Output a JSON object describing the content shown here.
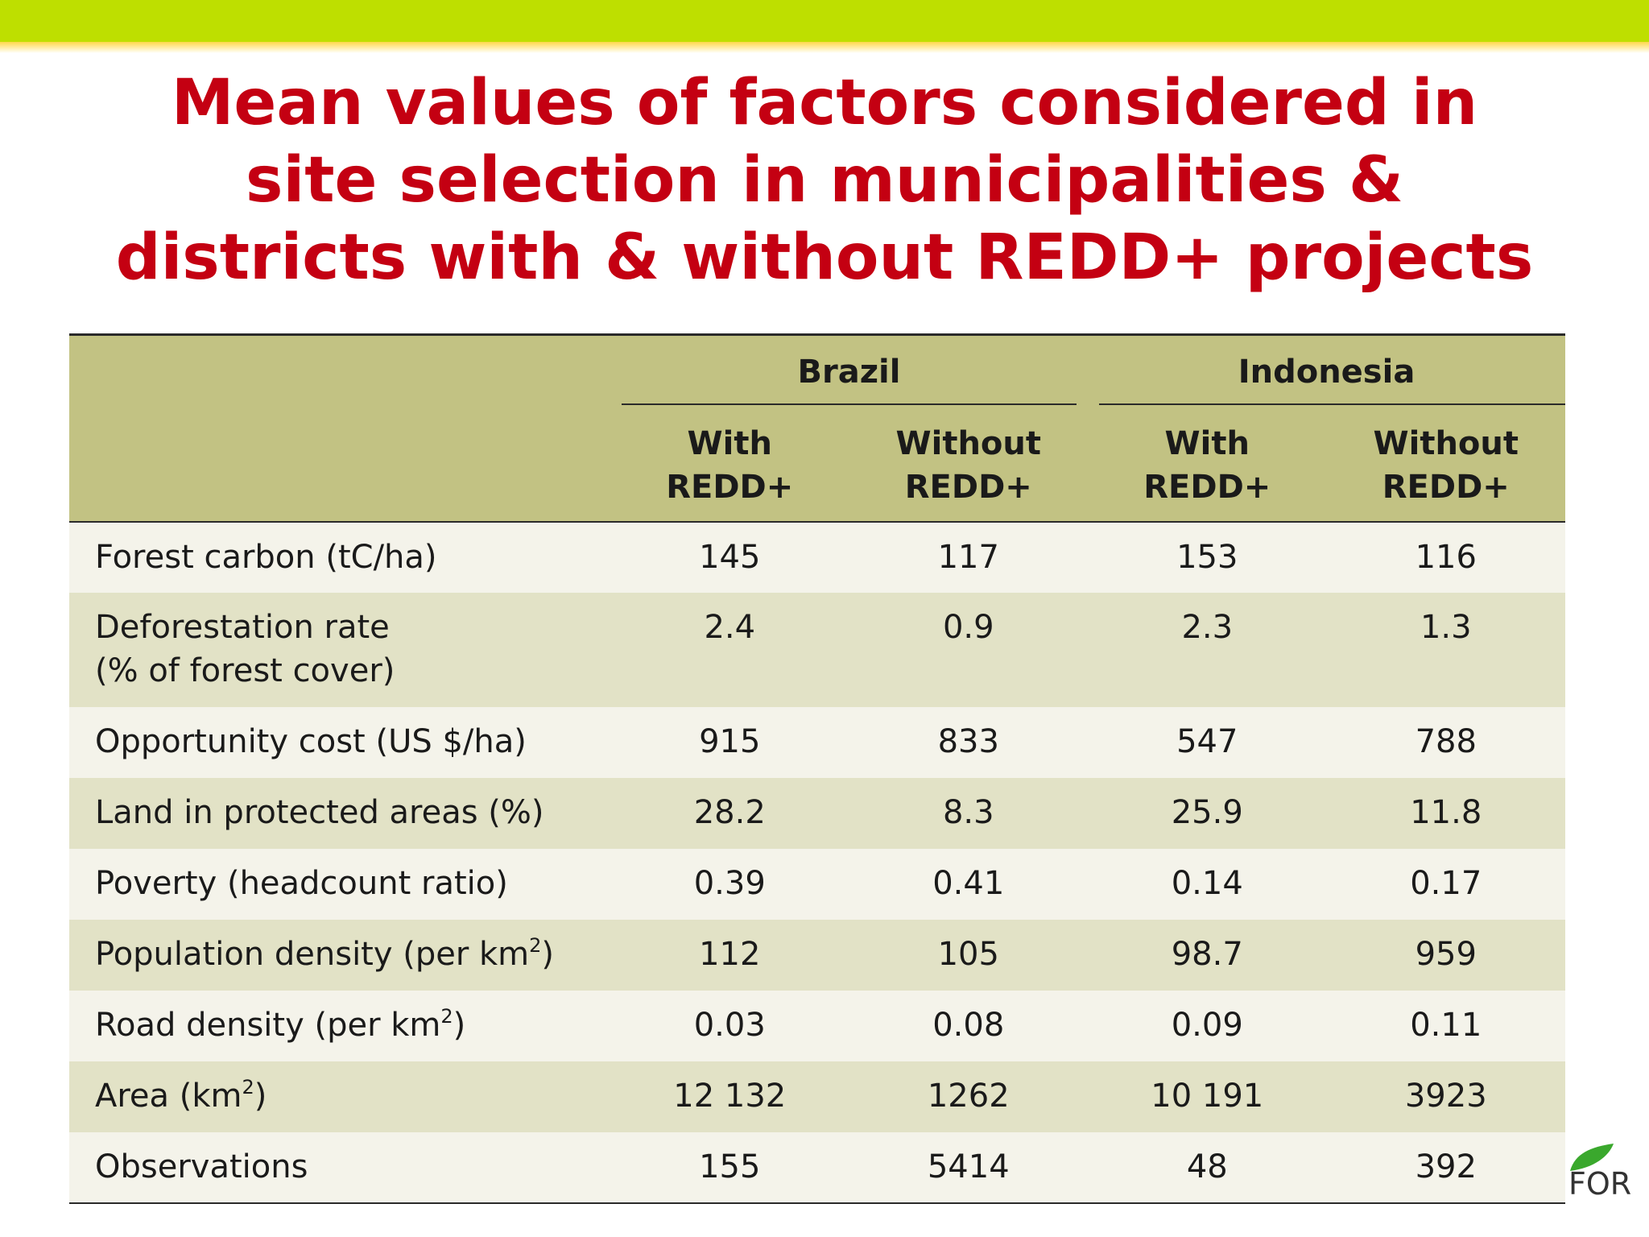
{
  "title_lines": [
    "Mean values of factors considered in",
    "site selection in municipalities &",
    "districts with & without REDD+ projects"
  ],
  "table": {
    "countries": [
      "Brazil",
      "Indonesia"
    ],
    "sub_headers": [
      {
        "line1": "With",
        "line2": "REDD+"
      },
      {
        "line1": "Without",
        "line2": "REDD+"
      },
      {
        "line1": "With",
        "line2": "REDD+"
      },
      {
        "line1": "Without",
        "line2": "REDD+"
      }
    ],
    "rows": [
      {
        "label": "Forest carbon (tC/ha)",
        "values": [
          "145",
          "117",
          "153",
          "116"
        ]
      },
      {
        "label": "Deforestation rate",
        "label2": "(% of forest cover)",
        "values": [
          "2.4",
          "0.9",
          "2.3",
          "1.3"
        ]
      },
      {
        "label": "Opportunity cost (US $/ha)",
        "values": [
          "915",
          "833",
          "547",
          "788"
        ]
      },
      {
        "label": "Land in protected areas (%)",
        "values": [
          "28.2",
          "8.3",
          "25.9",
          "11.8"
        ]
      },
      {
        "label": "Poverty (headcount ratio)",
        "values": [
          "0.39",
          "0.41",
          "0.14",
          "0.17"
        ]
      },
      {
        "label": "Population density (per km",
        "label_sup": "2",
        "label_end": ")",
        "values": [
          "112",
          "105",
          "98.7",
          "959"
        ]
      },
      {
        "label": "Road density (per km",
        "label_sup": "2",
        "label_end": ")",
        "values": [
          "0.03",
          "0.08",
          "0.09",
          "0.11"
        ]
      },
      {
        "label": "Area (km",
        "label_sup": "2",
        "label_end": ")",
        "values": [
          "12 132",
          "1262",
          "10 191",
          "3923"
        ]
      },
      {
        "label": "Observations",
        "values": [
          "155",
          "5414",
          "48",
          "392"
        ]
      }
    ]
  },
  "logo": {
    "text": "FOR",
    "leaf_color": "#3aa82d"
  },
  "colors": {
    "title": "#c40012",
    "top_bar": "#bedf00",
    "header_bg": "#c2c283",
    "row_light": "#f4f3ea",
    "row_dark": "#e2e2c6"
  }
}
